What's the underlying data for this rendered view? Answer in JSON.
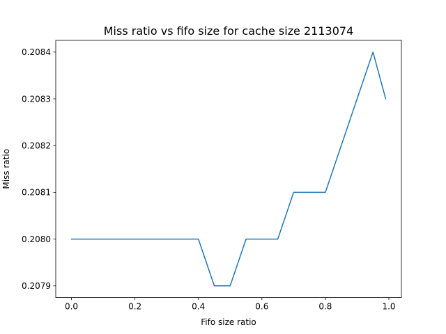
{
  "chart_data": {
    "type": "line",
    "title": "Miss ratio vs fifo size for cache size 2113074",
    "xlabel": "Fifo size ratio",
    "ylabel": "Miss ratio",
    "xlim": [
      -0.0495,
      1.0395
    ],
    "ylim": [
      0.207875,
      0.208425
    ],
    "xticks": [
      0.0,
      0.2,
      0.4,
      0.6,
      0.8,
      1.0
    ],
    "xtick_labels": [
      "0.0",
      "0.2",
      "0.4",
      "0.6",
      "0.8",
      "1.0"
    ],
    "yticks": [
      0.2079,
      0.208,
      0.2081,
      0.2082,
      0.2083,
      0.2084
    ],
    "ytick_labels": [
      "0.2079",
      "0.2080",
      "0.2081",
      "0.2082",
      "0.2083",
      "0.2084"
    ],
    "grid": false,
    "series": [
      {
        "color": "#1f77b4",
        "x": [
          0.0,
          0.05,
          0.1,
          0.15,
          0.2,
          0.25,
          0.3,
          0.35,
          0.4,
          0.45,
          0.5,
          0.55,
          0.6,
          0.65,
          0.7,
          0.75,
          0.8,
          0.85,
          0.9,
          0.95,
          0.99
        ],
        "values": [
          0.208,
          0.208,
          0.208,
          0.208,
          0.208,
          0.208,
          0.208,
          0.208,
          0.208,
          0.2079,
          0.2079,
          0.208,
          0.208,
          0.208,
          0.2081,
          0.2081,
          0.2081,
          0.2082,
          0.2083,
          0.2084,
          0.2083
        ]
      }
    ]
  }
}
